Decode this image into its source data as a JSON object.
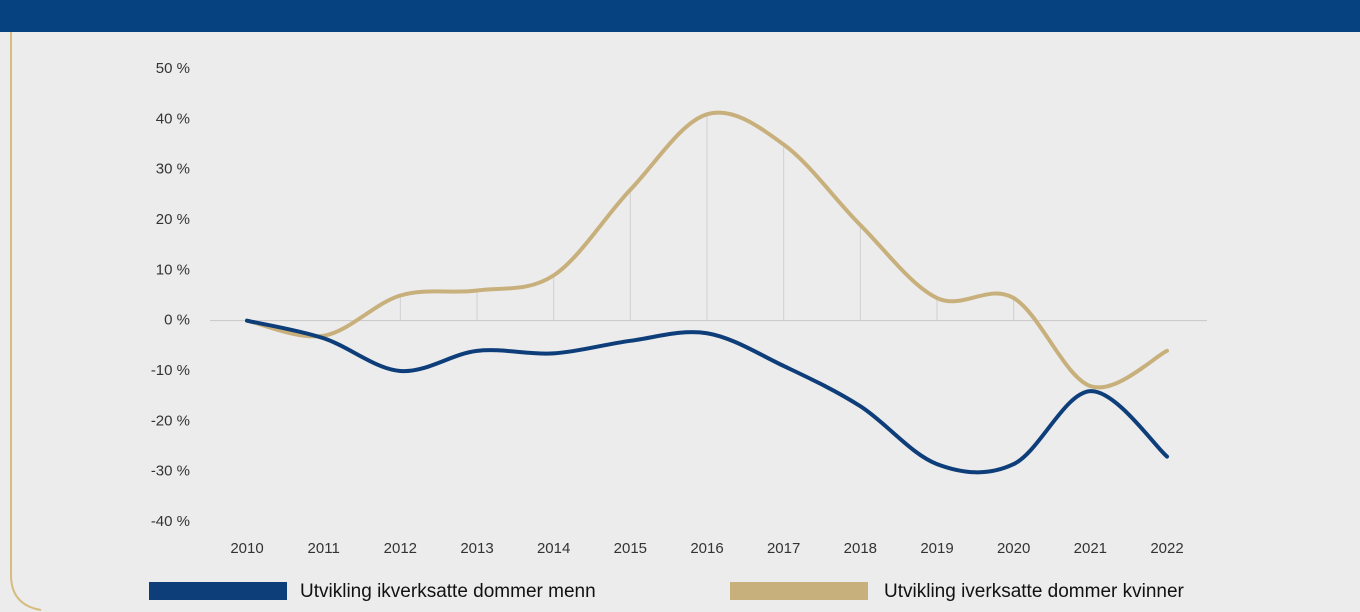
{
  "chart_data": {
    "type": "line",
    "categories": [
      "2010",
      "2011",
      "2012",
      "2013",
      "2014",
      "2015",
      "2016",
      "2017",
      "2018",
      "2019",
      "2020",
      "2021",
      "2022"
    ],
    "series": [
      {
        "name": "Utvikling ikverksatte dommer menn",
        "color": "#0d3e7a",
        "values": [
          0,
          -3.5,
          -10,
          -6,
          -6.5,
          -4,
          -2.5,
          -9,
          -17,
          -28.5,
          -28.5,
          -14,
          -27
        ]
      },
      {
        "name": "Utvikling iverksatte dommer kvinner",
        "color": "#c8b07c",
        "values": [
          0,
          -3,
          5,
          6,
          9,
          26,
          41,
          35,
          19,
          4.5,
          4.5,
          -13,
          -6
        ]
      }
    ],
    "ylim": [
      -40,
      50
    ],
    "yticks": [
      {
        "value": -40,
        "label": "-40 %"
      },
      {
        "value": -30,
        "label": "-30 %"
      },
      {
        "value": -20,
        "label": "-20 %"
      },
      {
        "value": -10,
        "label": "-10 %"
      },
      {
        "value": 0,
        "label": "0 %"
      },
      {
        "value": 10,
        "label": "10 %"
      },
      {
        "value": 20,
        "label": "20 %"
      },
      {
        "value": 30,
        "label": "30 %"
      },
      {
        "value": 40,
        "label": "40 %"
      },
      {
        "value": 50,
        "label": "50 %"
      }
    ],
    "legend": "bottom"
  }
}
